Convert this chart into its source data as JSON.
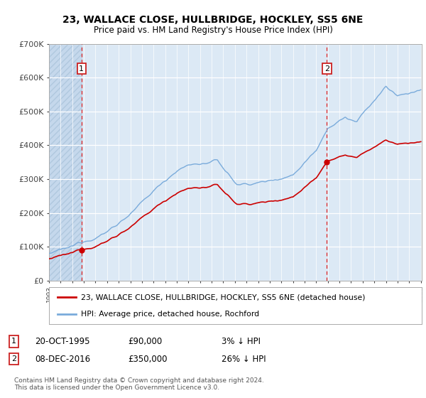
{
  "title": "23, WALLACE CLOSE, HULLBRIDGE, HOCKLEY, SS5 6NE",
  "subtitle": "Price paid vs. HM Land Registry's House Price Index (HPI)",
  "ylim": [
    0,
    700000
  ],
  "yticks": [
    0,
    100000,
    200000,
    300000,
    400000,
    500000,
    600000,
    700000
  ],
  "ytick_labels": [
    "£0",
    "£100K",
    "£200K",
    "£300K",
    "£400K",
    "£500K",
    "£600K",
    "£700K"
  ],
  "sale1_date": 1995.8,
  "sale1_price": 90000,
  "sale1_label": "1",
  "sale1_text": "20-OCT-1995",
  "sale1_price_text": "£90,000",
  "sale1_hpi_text": "3% ↓ HPI",
  "sale2_date": 2016.92,
  "sale2_price": 350000,
  "sale2_label": "2",
  "sale2_text": "08-DEC-2016",
  "sale2_price_text": "£350,000",
  "sale2_hpi_text": "26% ↓ HPI",
  "legend_line1": "23, WALLACE CLOSE, HULLBRIDGE, HOCKLEY, SS5 6NE (detached house)",
  "legend_line2": "HPI: Average price, detached house, Rochford",
  "footer": "Contains HM Land Registry data © Crown copyright and database right 2024.\nThis data is licensed under the Open Government Licence v3.0.",
  "line_red_color": "#cc0000",
  "line_blue_color": "#7aabdb",
  "bg_color": "#dce9f5",
  "grid_color": "#ffffff",
  "start_year": 1993,
  "end_year": 2025
}
